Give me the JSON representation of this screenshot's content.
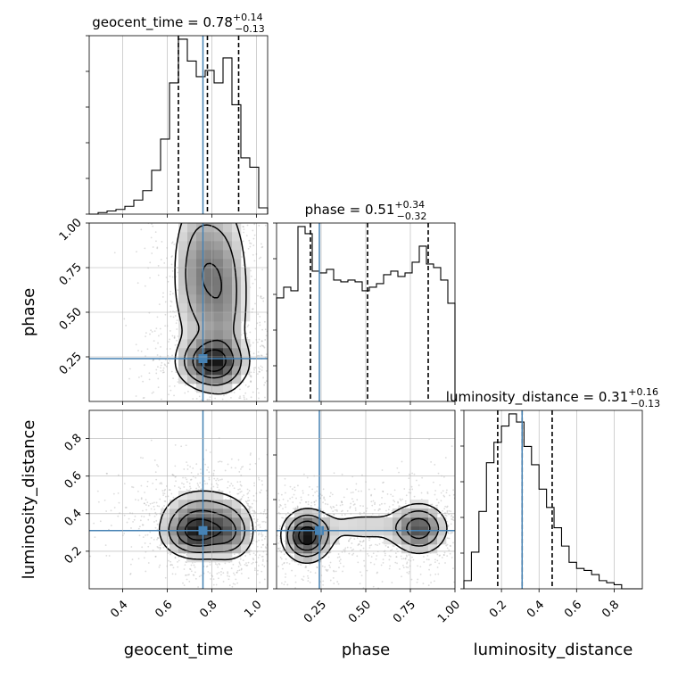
{
  "chart_data": {
    "type": "corner",
    "parameters": [
      {
        "name": "geocent_time",
        "range": [
          0.25,
          1.05
        ],
        "ticks": [
          0.4,
          0.6,
          0.8,
          1.0
        ],
        "tick_labels": [
          "0.4",
          "0.6",
          "0.8",
          "1.0"
        ],
        "title_prefix": "geocent_time = 0.78",
        "title_sup": "+0.14",
        "title_sub": "−0.13",
        "median": 0.78,
        "quantiles": [
          0.65,
          0.78,
          0.92
        ],
        "truth": 0.76
      },
      {
        "name": "phase",
        "range": [
          0.0,
          1.0
        ],
        "ticks": [
          0.25,
          0.5,
          0.75,
          1.0
        ],
        "tick_labels": [
          "0.25",
          "0.50",
          "0.75",
          "1.00"
        ],
        "title_prefix": "phase = 0.51",
        "title_sup": "+0.34",
        "title_sub": "−0.32",
        "median": 0.51,
        "quantiles": [
          0.19,
          0.51,
          0.85
        ],
        "truth": 0.24
      },
      {
        "name": "luminosity_distance",
        "range": [
          0.0,
          0.95
        ],
        "ticks": [
          0.2,
          0.4,
          0.6,
          0.8
        ],
        "tick_labels": [
          "0.2",
          "0.4",
          "0.6",
          "0.8"
        ],
        "title_prefix": "luminosity_distance = 0.31",
        "title_sup": "+0.16",
        "title_sub": "−0.13",
        "median": 0.31,
        "quantiles": [
          0.18,
          0.31,
          0.47
        ],
        "truth": 0.31
      }
    ],
    "histograms": [
      {
        "param": "geocent_time",
        "bin_edges": [
          0.25,
          0.29,
          0.33,
          0.37,
          0.41,
          0.45,
          0.49,
          0.53,
          0.57,
          0.61,
          0.65,
          0.69,
          0.73,
          0.77,
          0.81,
          0.85,
          0.89,
          0.93,
          0.97,
          1.01,
          1.05
        ],
        "counts": [
          0,
          1,
          2,
          3,
          5,
          9,
          15,
          28,
          48,
          84,
          112,
          98,
          88,
          92,
          84,
          100,
          70,
          36,
          30,
          4
        ]
      },
      {
        "param": "phase",
        "bin_edges": [
          0.0,
          0.04,
          0.08,
          0.12,
          0.16,
          0.2,
          0.24,
          0.28,
          0.32,
          0.36,
          0.4,
          0.44,
          0.48,
          0.52,
          0.56,
          0.6,
          0.64,
          0.68,
          0.72,
          0.76,
          0.8,
          0.84,
          0.88,
          0.92,
          0.96,
          1.0
        ],
        "counts": [
          58,
          64,
          62,
          98,
          94,
          73,
          72,
          74,
          68,
          67,
          68,
          67,
          62,
          64,
          66,
          71,
          73,
          70,
          72,
          78,
          87,
          77,
          75,
          68,
          55
        ]
      },
      {
        "param": "luminosity_distance",
        "bin_edges": [
          0.0,
          0.04,
          0.08,
          0.12,
          0.16,
          0.2,
          0.24,
          0.28,
          0.32,
          0.36,
          0.4,
          0.44,
          0.48,
          0.52,
          0.56,
          0.6,
          0.64,
          0.68,
          0.72,
          0.76,
          0.8,
          0.84,
          0.88,
          0.92,
          0.95
        ],
        "counts": [
          4,
          18,
          38,
          62,
          72,
          80,
          86,
          82,
          70,
          61,
          49,
          40,
          30,
          21,
          13,
          10,
          9,
          7,
          4,
          3,
          2,
          0,
          0,
          0
        ]
      }
    ],
    "joint_modes": [
      {
        "x": "geocent_time",
        "y": "phase",
        "peaks": [
          {
            "cx": 0.8,
            "cy": 0.22,
            "sx": 0.08,
            "sy": 0.08,
            "w": 1.0
          },
          {
            "cx": 0.75,
            "cy": 0.72,
            "sx": 0.07,
            "sy": 0.25,
            "w": 0.55
          },
          {
            "cx": 0.86,
            "cy": 0.6,
            "sx": 0.06,
            "sy": 0.28,
            "w": 0.45
          }
        ]
      },
      {
        "x": "geocent_time",
        "y": "luminosity_distance",
        "peaks": [
          {
            "cx": 0.73,
            "cy": 0.3,
            "sx": 0.08,
            "sy": 0.07,
            "w": 1.0
          },
          {
            "cx": 0.88,
            "cy": 0.3,
            "sx": 0.06,
            "sy": 0.08,
            "w": 0.55
          },
          {
            "cx": 0.76,
            "cy": 0.42,
            "sx": 0.1,
            "sy": 0.07,
            "w": 0.35
          }
        ]
      },
      {
        "x": "phase",
        "y": "luminosity_distance",
        "peaks": [
          {
            "cx": 0.17,
            "cy": 0.28,
            "sx": 0.07,
            "sy": 0.07,
            "w": 1.0
          },
          {
            "cx": 0.8,
            "cy": 0.32,
            "sx": 0.08,
            "sy": 0.07,
            "w": 0.7
          },
          {
            "cx": 0.5,
            "cy": 0.33,
            "sx": 0.2,
            "sy": 0.06,
            "w": 0.18
          }
        ]
      }
    ],
    "grid": true,
    "truth_color": "#4682b4",
    "contour_color": "#000000"
  }
}
